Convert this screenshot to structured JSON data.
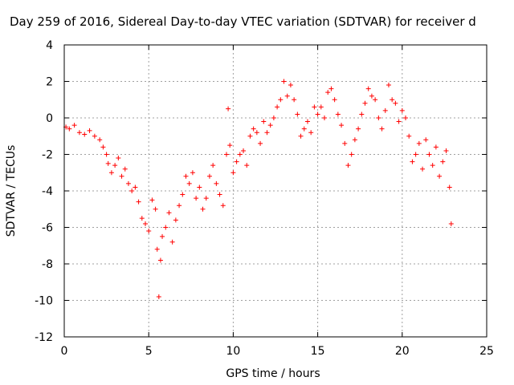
{
  "chart_data": {
    "type": "scatter",
    "title": "Day 259 of 2016, Sidereal Day-to-day VTEC variation (SDTVAR) for receiver d",
    "xlabel": "GPS time / hours",
    "ylabel": "SDTVAR / TECUs",
    "xlim": [
      0,
      25
    ],
    "ylim": [
      -12,
      4
    ],
    "xticks": [
      0,
      5,
      10,
      15,
      20,
      25
    ],
    "yticks": [
      -12,
      -10,
      -8,
      -6,
      -4,
      -2,
      0,
      2,
      4
    ],
    "grid": true,
    "marker": "+",
    "color": "#ff0000",
    "series": [
      {
        "name": "SDTVAR",
        "x": [
          0.1,
          0.3,
          0.6,
          0.9,
          1.2,
          1.5,
          1.8,
          2.1,
          2.3,
          2.5,
          2.6,
          2.8,
          3.0,
          3.2,
          3.4,
          3.6,
          3.8,
          4.0,
          4.2,
          4.4,
          4.6,
          4.8,
          5.0,
          5.2,
          5.4,
          5.5,
          5.6,
          5.7,
          5.8,
          6.0,
          6.2,
          6.4,
          6.6,
          6.8,
          7.0,
          7.2,
          7.4,
          7.6,
          7.8,
          8.0,
          8.2,
          8.4,
          8.6,
          8.8,
          9.0,
          9.2,
          9.4,
          9.6,
          9.7,
          9.8,
          10.0,
          10.2,
          10.4,
          10.6,
          10.8,
          11.0,
          11.2,
          11.4,
          11.6,
          11.8,
          12.0,
          12.2,
          12.4,
          12.6,
          12.8,
          13.0,
          13.2,
          13.4,
          13.6,
          13.8,
          14.0,
          14.2,
          14.4,
          14.6,
          14.8,
          15.0,
          15.2,
          15.4,
          15.6,
          15.8,
          16.0,
          16.2,
          16.4,
          16.6,
          16.8,
          17.0,
          17.2,
          17.4,
          17.6,
          17.8,
          18.0,
          18.2,
          18.4,
          18.6,
          18.8,
          19.0,
          19.2,
          19.4,
          19.6,
          19.8,
          20.0,
          20.2,
          20.4,
          20.6,
          20.8,
          21.0,
          21.2,
          21.4,
          21.6,
          21.8,
          22.0,
          22.2,
          22.4,
          22.6,
          22.8,
          22.9
        ],
        "y": [
          -0.5,
          -0.6,
          -0.4,
          -0.8,
          -0.9,
          -0.7,
          -1.0,
          -1.2,
          -1.6,
          -2.0,
          -2.5,
          -3.0,
          -2.6,
          -2.2,
          -3.2,
          -2.8,
          -3.6,
          -4.0,
          -3.8,
          -4.6,
          -5.5,
          -5.8,
          -6.2,
          -4.5,
          -5.0,
          -7.2,
          -9.8,
          -7.8,
          -6.5,
          -6.0,
          -5.2,
          -6.8,
          -5.6,
          -4.8,
          -4.2,
          -3.2,
          -3.6,
          -3.0,
          -4.4,
          -3.8,
          -5.0,
          -4.4,
          -3.2,
          -2.6,
          -3.6,
          -4.2,
          -4.8,
          -2.0,
          0.5,
          -1.5,
          -3.0,
          -2.4,
          -2.0,
          -1.8,
          -2.6,
          -1.0,
          -0.6,
          -0.8,
          -1.4,
          -0.2,
          -0.8,
          -0.4,
          0.0,
          0.6,
          1.0,
          2.0,
          1.2,
          1.8,
          1.0,
          0.2,
          -1.0,
          -0.6,
          -0.2,
          -0.8,
          0.6,
          0.2,
          0.6,
          0.0,
          1.4,
          1.6,
          1.0,
          0.2,
          -0.4,
          -1.4,
          -2.6,
          -2.0,
          -1.2,
          -0.6,
          0.2,
          0.8,
          1.6,
          1.2,
          1.0,
          0.0,
          -0.6,
          0.4,
          1.8,
          1.0,
          0.8,
          -0.2,
          0.4,
          0.0,
          -1.0,
          -2.4,
          -2.0,
          -1.4,
          -2.8,
          -1.2,
          -2.0,
          -2.6,
          -1.6,
          -3.2,
          -2.4,
          -1.8,
          -3.8,
          -5.8
        ]
      }
    ]
  }
}
